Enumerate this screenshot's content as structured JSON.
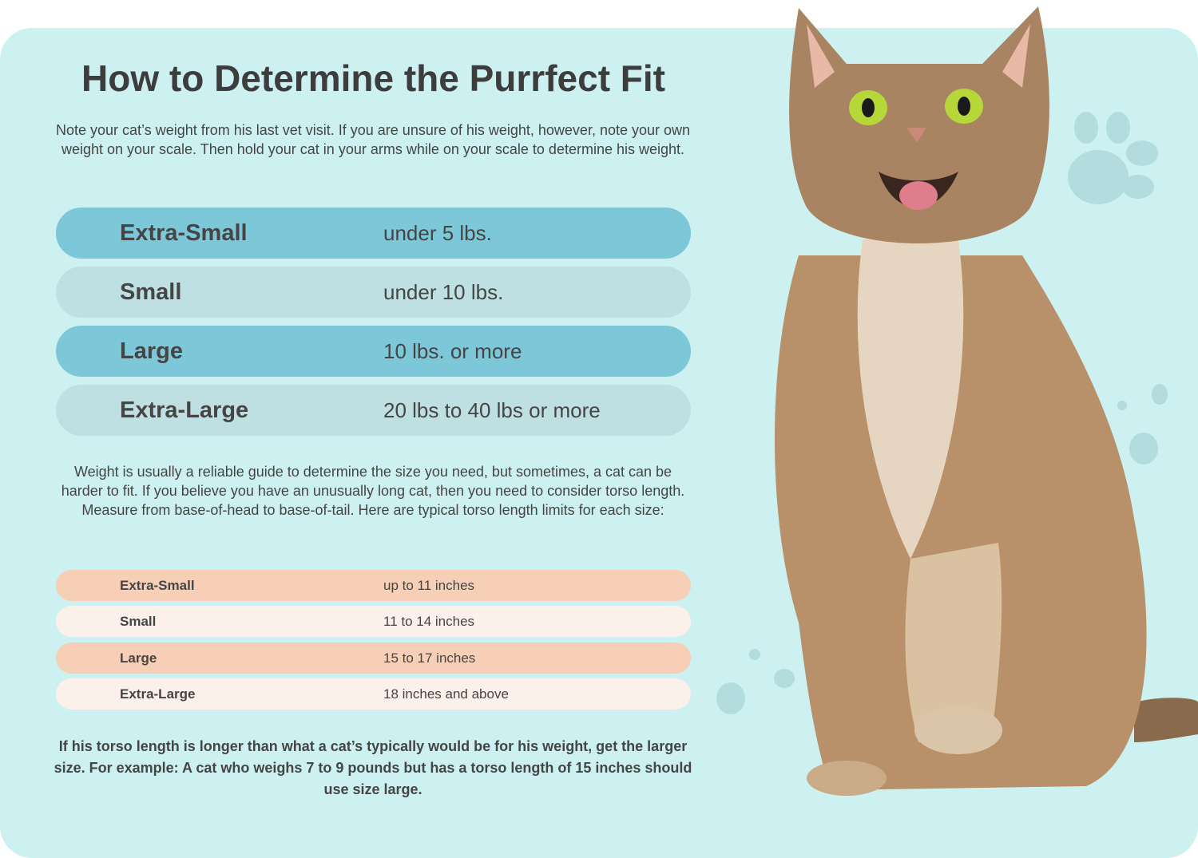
{
  "title": "How to Determine the Purrfect Fit",
  "intro": "Note your cat’s weight from his last vet visit. If you are unsure of his weight, however, note your own weight on your scale. Then hold your cat in your arms while on your scale to determine his weight.",
  "weight_sizes": [
    {
      "size": "Extra-Small",
      "weight": "under 5 lbs."
    },
    {
      "size": "Small",
      "weight": "under 10 lbs."
    },
    {
      "size": "Large",
      "weight": "10 lbs. or more"
    },
    {
      "size": "Extra-Large",
      "weight": "20 lbs to 40 lbs or more"
    }
  ],
  "torso_intro": "Weight is usually a reliable guide to determine the size you need, but sometimes, a cat can be harder to fit. If you believe you have an unusually long cat, then you need to consider torso length. Measure from base-of-head to base-of-tail. Here are typical torso length limits for each size:",
  "torso_sizes": [
    {
      "size": "Extra-Small",
      "length": "up to 11 inches"
    },
    {
      "size": "Small",
      "length": "11 to 14 inches"
    },
    {
      "size": "Large",
      "length": "15 to 17 inches"
    },
    {
      "size": "Extra-Large",
      "length": "18 inches and above"
    }
  ],
  "footer_note": "If his torso length is longer than what a cat’s typically would be for his weight, get the larger size. For example: A cat who weighs 7 to 9 pounds but has a torso length of 15 inches should use size large.",
  "colors": {
    "background": "#cdf0f0",
    "weight_row_dark": "#7cc8d8",
    "weight_row_light": "#bfe0e2",
    "torso_row_dark": "#f6cfb6",
    "torso_row_light": "#fbf1ea",
    "text": "#454545"
  },
  "icons": [
    "paw-print-icon",
    "cat-photo"
  ]
}
